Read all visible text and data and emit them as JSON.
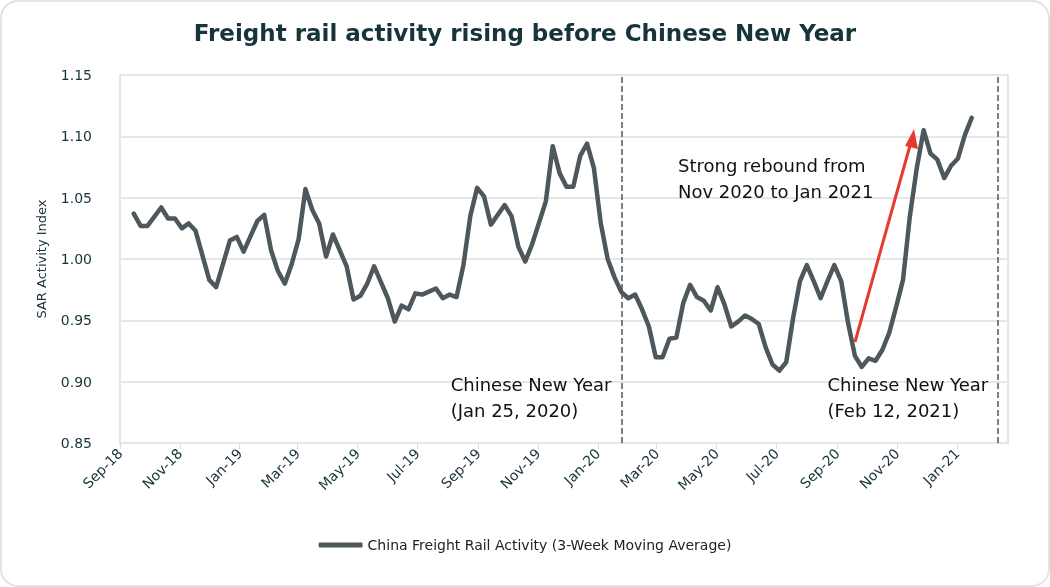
{
  "chart_data": {
    "type": "line",
    "title": "Freight rail activity rising before Chinese New Year",
    "ylabel": "SAR Activity Index",
    "series": [
      {
        "name": "China Freight Rail Activity (3-Week Moving Average)",
        "color": "#4d575c",
        "x": [
          "2018-09-15",
          "2018-09-22",
          "2018-09-29",
          "2018-10-13",
          "2018-10-20",
          "2018-10-27",
          "2018-11-03",
          "2018-11-10",
          "2018-11-17",
          "2018-12-01",
          "2018-12-08",
          "2018-12-22",
          "2018-12-29",
          "2019-01-05",
          "2019-01-19",
          "2019-01-26",
          "2019-02-02",
          "2019-02-09",
          "2019-02-16",
          "2019-02-23",
          "2019-03-02",
          "2019-03-09",
          "2019-03-16",
          "2019-03-23",
          "2019-03-30",
          "2019-04-06",
          "2019-04-20",
          "2019-04-27",
          "2019-05-04",
          "2019-05-11",
          "2019-05-18",
          "2019-06-01",
          "2019-06-08",
          "2019-06-15",
          "2019-06-22",
          "2019-06-29",
          "2019-07-06",
          "2019-07-20",
          "2019-07-27",
          "2019-08-03",
          "2019-08-10",
          "2019-08-17",
          "2019-08-24",
          "2019-08-31",
          "2019-09-07",
          "2019-09-14",
          "2019-09-28",
          "2019-10-05",
          "2019-10-12",
          "2019-10-19",
          "2019-10-26",
          "2019-11-09",
          "2019-11-16",
          "2019-11-23",
          "2019-11-30",
          "2019-12-07",
          "2019-12-14",
          "2019-12-21",
          "2019-12-28",
          "2020-01-04",
          "2020-01-11",
          "2020-01-18",
          "2020-01-25",
          "2020-02-01",
          "2020-02-08",
          "2020-02-15",
          "2020-02-22",
          "2020-02-29",
          "2020-03-07",
          "2020-03-14",
          "2020-03-21",
          "2020-03-28",
          "2020-04-04",
          "2020-04-11",
          "2020-04-18",
          "2020-04-25",
          "2020-05-02",
          "2020-05-09",
          "2020-05-16",
          "2020-05-23",
          "2020-05-30",
          "2020-06-06",
          "2020-06-13",
          "2020-06-20",
          "2020-06-27",
          "2020-07-04",
          "2020-07-11",
          "2020-07-18",
          "2020-07-25",
          "2020-08-01",
          "2020-08-08",
          "2020-08-15",
          "2020-08-22",
          "2020-08-29",
          "2020-09-05",
          "2020-09-12",
          "2020-09-19",
          "2020-09-26",
          "2020-10-03",
          "2020-10-10",
          "2020-10-17",
          "2020-10-24",
          "2020-10-31",
          "2020-11-07",
          "2020-11-14",
          "2020-11-21",
          "2020-11-28",
          "2020-12-05",
          "2020-12-12",
          "2020-12-19",
          "2020-12-26",
          "2021-01-02",
          "2021-01-09",
          "2021-01-16"
        ],
        "values": [
          1.037,
          1.027,
          1.027,
          1.042,
          1.033,
          1.033,
          1.025,
          1.029,
          1.023,
          0.983,
          0.977,
          1.015,
          1.018,
          1.006,
          1.031,
          1.036,
          1.007,
          0.99,
          0.98,
          0.996,
          1.016,
          1.057,
          1.04,
          1.029,
          1.002,
          1.02,
          0.994,
          0.967,
          0.97,
          0.98,
          0.994,
          0.968,
          0.949,
          0.962,
          0.959,
          0.972,
          0.971,
          0.976,
          0.968,
          0.971,
          0.969,
          0.995,
          1.035,
          1.058,
          1.051,
          1.028,
          1.044,
          1.035,
          1.01,
          0.998,
          1.012,
          1.047,
          1.092,
          1.07,
          1.059,
          1.059,
          1.084,
          1.094,
          1.074,
          1.029,
          1.0,
          0.985,
          0.973,
          0.968,
          0.971,
          0.959,
          0.945,
          0.92,
          0.92,
          0.935,
          0.936,
          0.964,
          0.979,
          0.969,
          0.966,
          0.958,
          0.977,
          0.963,
          0.945,
          0.949,
          0.954,
          0.951,
          0.947,
          0.928,
          0.914,
          0.909,
          0.916,
          0.952,
          0.982,
          0.995,
          0.982,
          0.968,
          0.982,
          0.995,
          0.982,
          0.948,
          0.921,
          0.912,
          0.919,
          0.917,
          0.926,
          0.94,
          0.961,
          0.983,
          1.035,
          1.074,
          1.105,
          1.086,
          1.081,
          1.066,
          1.076,
          1.082,
          1.101,
          1.115
        ]
      }
    ],
    "xlim": [
      "2018-09-01",
      "2021-02-22"
    ],
    "xticks": [
      {
        "value": "2018-09-01",
        "label": "Sep-18"
      },
      {
        "value": "2018-11-01",
        "label": "Nov-18"
      },
      {
        "value": "2019-01-01",
        "label": "Jan-19"
      },
      {
        "value": "2019-03-01",
        "label": "Mar-19"
      },
      {
        "value": "2019-05-01",
        "label": "May-19"
      },
      {
        "value": "2019-07-01",
        "label": "Jul-19"
      },
      {
        "value": "2019-09-01",
        "label": "Sep-19"
      },
      {
        "value": "2019-11-01",
        "label": "Nov-19"
      },
      {
        "value": "2020-01-01",
        "label": "Jan-20"
      },
      {
        "value": "2020-03-01",
        "label": "Mar-20"
      },
      {
        "value": "2020-05-01",
        "label": "May-20"
      },
      {
        "value": "2020-07-01",
        "label": "Jul-20"
      },
      {
        "value": "2020-09-01",
        "label": "Sep-20"
      },
      {
        "value": "2020-11-01",
        "label": "Nov-20"
      },
      {
        "value": "2021-01-01",
        "label": "Jan-21"
      }
    ],
    "ylim": [
      0.85,
      1.15
    ],
    "yticks": [
      {
        "value": 0.85,
        "label": "0.85"
      },
      {
        "value": 0.9,
        "label": "0.90"
      },
      {
        "value": 0.95,
        "label": "0.95"
      },
      {
        "value": 1.0,
        "label": "1.00"
      },
      {
        "value": 1.05,
        "label": "1.05"
      },
      {
        "value": 1.1,
        "label": "1.10"
      },
      {
        "value": 1.15,
        "label": "1.15"
      }
    ],
    "ref_lines": [
      {
        "axis": "x",
        "value": "2020-01-25",
        "label": "Chinese New Year\n(Jan 25, 2020)",
        "color": "#4d575c",
        "line_style": "dashed"
      },
      {
        "axis": "x",
        "value": "2021-02-12",
        "label": "Chinese New Year\n(Feb 12, 2021)",
        "color": "#4d575c",
        "line_style": "dashed"
      }
    ],
    "annotations": [
      "Strong rebound from\nNov 2020 to Jan 2021"
    ],
    "grid": "y",
    "legend": "bottom",
    "line_style": "solid",
    "marker": "none"
  }
}
